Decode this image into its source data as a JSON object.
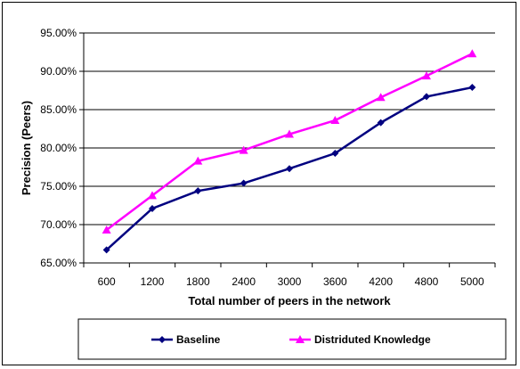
{
  "chart_data": {
    "type": "line",
    "title": "",
    "xlabel": "Total number of peers in the network",
    "ylabel": "Precision (Peers)",
    "categories": [
      "600",
      "1200",
      "1800",
      "2400",
      "3000",
      "3600",
      "4200",
      "4800",
      "5000"
    ],
    "ylim": [
      65,
      95
    ],
    "yticks": [
      65,
      70,
      75,
      80,
      85,
      90,
      95
    ],
    "ytick_labels": [
      "65.00%",
      "70.00%",
      "75.00%",
      "80.00%",
      "85.00%",
      "90.00%",
      "95.00%"
    ],
    "grid": "horizontal",
    "legend_position": "bottom",
    "series": [
      {
        "name": "Baseline",
        "color": "#000080",
        "marker": "diamond",
        "values": [
          66.7,
          72.1,
          74.4,
          75.4,
          77.3,
          79.3,
          83.3,
          86.7,
          87.9
        ]
      },
      {
        "name": "Distriduted Knowledge",
        "color": "#ff00ff",
        "marker": "triangle",
        "values": [
          69.3,
          73.8,
          78.3,
          79.7,
          81.8,
          83.6,
          86.6,
          89.4,
          92.3
        ]
      }
    ]
  }
}
